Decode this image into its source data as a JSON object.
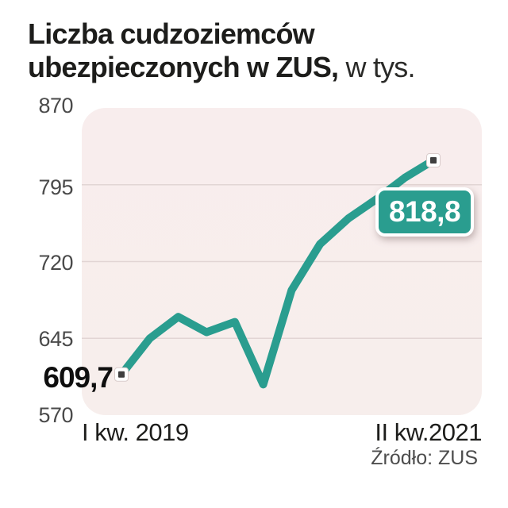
{
  "title": {
    "line1": "Liczba cudzoziemców",
    "line2_bold": "ubezpieczonych w ZUS,",
    "line2_regular": " w tys."
  },
  "chart_data": {
    "type": "line",
    "title": "Liczba cudzoziemców ubezpieczonych w ZUS",
    "unit": "w tys.",
    "ylim": [
      570,
      870
    ],
    "y_ticks": [
      "870",
      "795",
      "720",
      "645",
      "570"
    ],
    "gridline_values": [
      795,
      720,
      645
    ],
    "grid": true,
    "legend": "none",
    "x_tick_labels": [
      "I kw. 2019",
      "II kw.2021"
    ],
    "values": [
      609.7,
      645,
      666,
      651,
      661,
      600,
      692,
      737,
      762,
      781,
      802,
      818.8
    ],
    "first_point_label": "609,7",
    "last_point_label": "818,8",
    "line_color": "#2a9d8f"
  },
  "x_axis": {
    "left_label": "I kw. 2019",
    "right_label": "II kw.2021"
  },
  "source": "Źródło: ZUS",
  "colors": {
    "line": "#2a9d8f",
    "plot_bg": "#f7eeec",
    "gridline": "#e2d5d4",
    "title_text": "#1d1d1b",
    "axis_text": "#4a4a4a",
    "badge_bg": "#2a9d8f",
    "badge_text": "#ffffff",
    "marker_fill": "#ffffff",
    "marker_inner": "#3f3f3f"
  }
}
